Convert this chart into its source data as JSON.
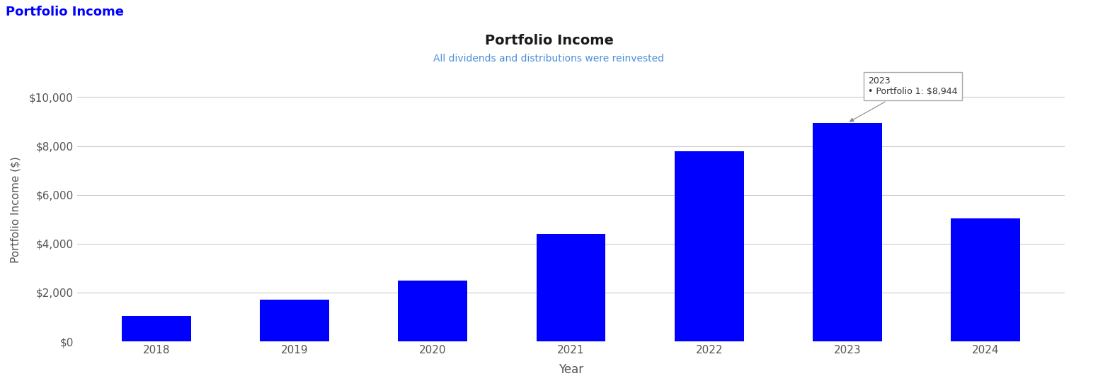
{
  "title": "Portfolio Income",
  "subtitle": "All dividends and distributions were reinvested",
  "top_label": "Portfolio Income",
  "xlabel": "Year",
  "ylabel": "Portfolio Income ($)",
  "categories": [
    "2018",
    "2019",
    "2020",
    "2021",
    "2022",
    "2023",
    "2024"
  ],
  "values": [
    1050,
    1700,
    2500,
    4400,
    7800,
    8944,
    5050
  ],
  "bar_color": "#0000FF",
  "background_color": "#ffffff",
  "ytick_labels": [
    "$0",
    "$2,000",
    "$4,000",
    "$6,000",
    "$8,000",
    "$10,000"
  ],
  "ytick_values": [
    0,
    2000,
    4000,
    6000,
    8000,
    10000
  ],
  "ylim": [
    0,
    10800
  ],
  "top_label_color": "#0000FF",
  "subtitle_color": "#4a90d9",
  "title_color": "#1a1a1a",
  "tooltip_year": "2023",
  "tooltip_text": "Portfolio 1: $8,944",
  "tooltip_bar_idx": 5,
  "tooltip_value": 8944,
  "grid_color": "#cccccc"
}
